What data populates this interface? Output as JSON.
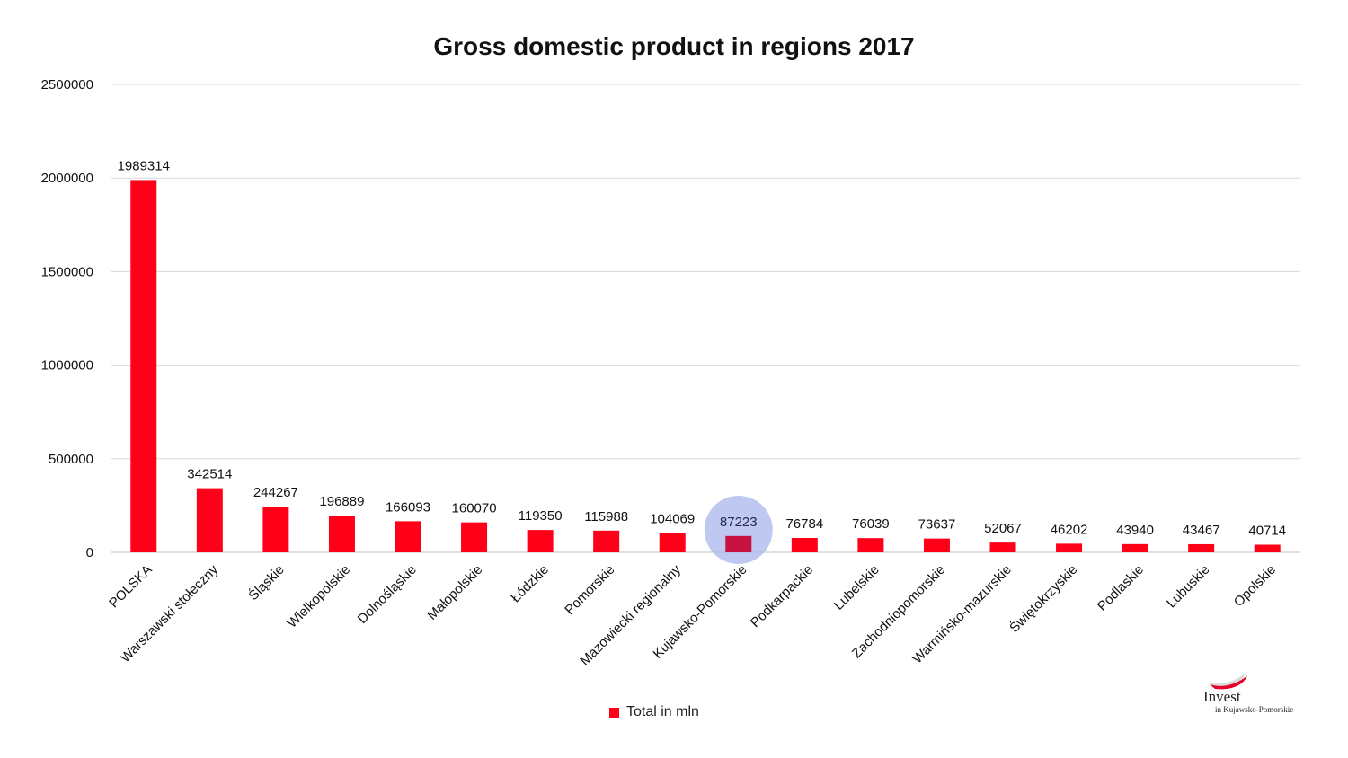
{
  "chart_data": {
    "type": "bar",
    "title": "Gross domestic product in regions 2017",
    "xlabel": "",
    "ylabel": "",
    "ylim": [
      0,
      2500000
    ],
    "yticks": [
      0,
      500000,
      1000000,
      1500000,
      2000000,
      2500000
    ],
    "ytick_labels": [
      "0",
      "500000",
      "1000000",
      "1500000",
      "2000000",
      "2500000"
    ],
    "grid": true,
    "legend_position": "bottom",
    "categories": [
      "POLSKA",
      "Warszawski stołeczny",
      "Śląskie",
      "Wielkopolskie",
      "Dolnośląskie",
      "Małopolskie",
      "Łódzkie",
      "Pomorskie",
      "Mazowiecki regionalny",
      "Kujawsko-Pomorskie",
      "Podkarpackie",
      "Lubelskie",
      "Zachodniopomorskie",
      "Warmińsko-mazurskie",
      "Świętokrzyskie",
      "Podlaskie",
      "Lubuskie",
      "Opolskie"
    ],
    "series": [
      {
        "name": "Total in mln",
        "values": [
          1989314,
          342514,
          244267,
          196889,
          166093,
          160070,
          119350,
          115988,
          104069,
          87223,
          76784,
          76039,
          73637,
          52067,
          46202,
          43940,
          43467,
          40714
        ],
        "labels": [
          "1989314",
          "342514",
          "244267",
          "196889",
          "166093",
          "160070",
          "119350",
          "115988",
          "104069",
          "87223",
          "76784",
          "76039",
          "73637",
          "52067",
          "46202",
          "43940",
          "43467",
          "40714"
        ]
      }
    ],
    "highlight_category": "Kujawsko-Pomorskie",
    "colors": {
      "bar": "#ff0019",
      "bar_highlight": "#c8123f",
      "highlight_circle": "#a9b6ec",
      "grid": "#d9d9d9",
      "text": "#111111"
    }
  },
  "logo": {
    "word": "Invest",
    "subtitle": "in Kujawsko-Pomorskie",
    "icon": "polish-flag-ribbon-icon"
  }
}
